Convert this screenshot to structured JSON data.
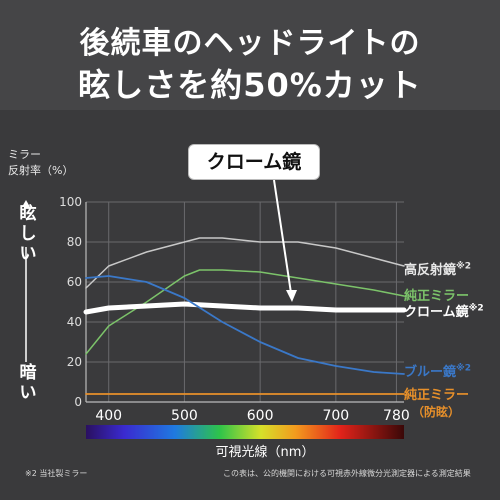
{
  "header": {
    "line1": "後続車のヘッドライトの",
    "line2": "眩しさを約50%カット"
  },
  "chart_data": {
    "type": "line",
    "ylabel_line1": "ミラー",
    "ylabel_line2": "反射率（%）",
    "xlabel": "可視光線（nm）",
    "ylim": [
      0,
      100
    ],
    "xlim": [
      370,
      790
    ],
    "yticks": [
      0,
      20,
      40,
      60,
      80,
      100
    ],
    "xticks": [
      400,
      500,
      600,
      700,
      780
    ],
    "high_label": "眩しい",
    "low_label": "暗い",
    "callout": "クローム鏡",
    "grid": true,
    "series": [
      {
        "name": "高反射鏡",
        "superscript": "※2",
        "color": "#c8c8c8",
        "x": [
          370,
          400,
          450,
          500,
          520,
          550,
          600,
          650,
          700,
          750,
          790
        ],
        "y": [
          57,
          68,
          75,
          80,
          82,
          82,
          80,
          80,
          77,
          72,
          68
        ]
      },
      {
        "name": "純正ミラー",
        "superscript": "",
        "color": "#7cc36a",
        "x": [
          370,
          400,
          450,
          500,
          520,
          550,
          600,
          650,
          700,
          750,
          790
        ],
        "y": [
          24,
          38,
          50,
          63,
          66,
          66,
          65,
          62,
          59,
          56,
          53
        ]
      },
      {
        "name": "クローム鏡",
        "superscript": "※2",
        "color": "#ffffff",
        "x": [
          370,
          400,
          450,
          500,
          550,
          600,
          650,
          700,
          750,
          790
        ],
        "y": [
          45,
          47,
          48,
          49,
          48,
          47,
          47,
          46,
          46,
          46
        ]
      },
      {
        "name": "ブルー鏡",
        "superscript": "※2",
        "color": "#3a78c8",
        "x": [
          370,
          400,
          450,
          500,
          550,
          600,
          650,
          700,
          750,
          790
        ],
        "y": [
          62,
          63,
          60,
          52,
          40,
          30,
          22,
          18,
          15,
          14
        ]
      },
      {
        "name": "純正ミラー",
        "sublabel": "（防眩）",
        "superscript": "",
        "color": "#e8902a",
        "x": [
          370,
          790
        ],
        "y": [
          4,
          4
        ]
      }
    ]
  },
  "footnotes": {
    "left": "※2 当社製ミラー",
    "right": "この表は、公的機関における可視赤外線微分光測定器による測定結果"
  }
}
